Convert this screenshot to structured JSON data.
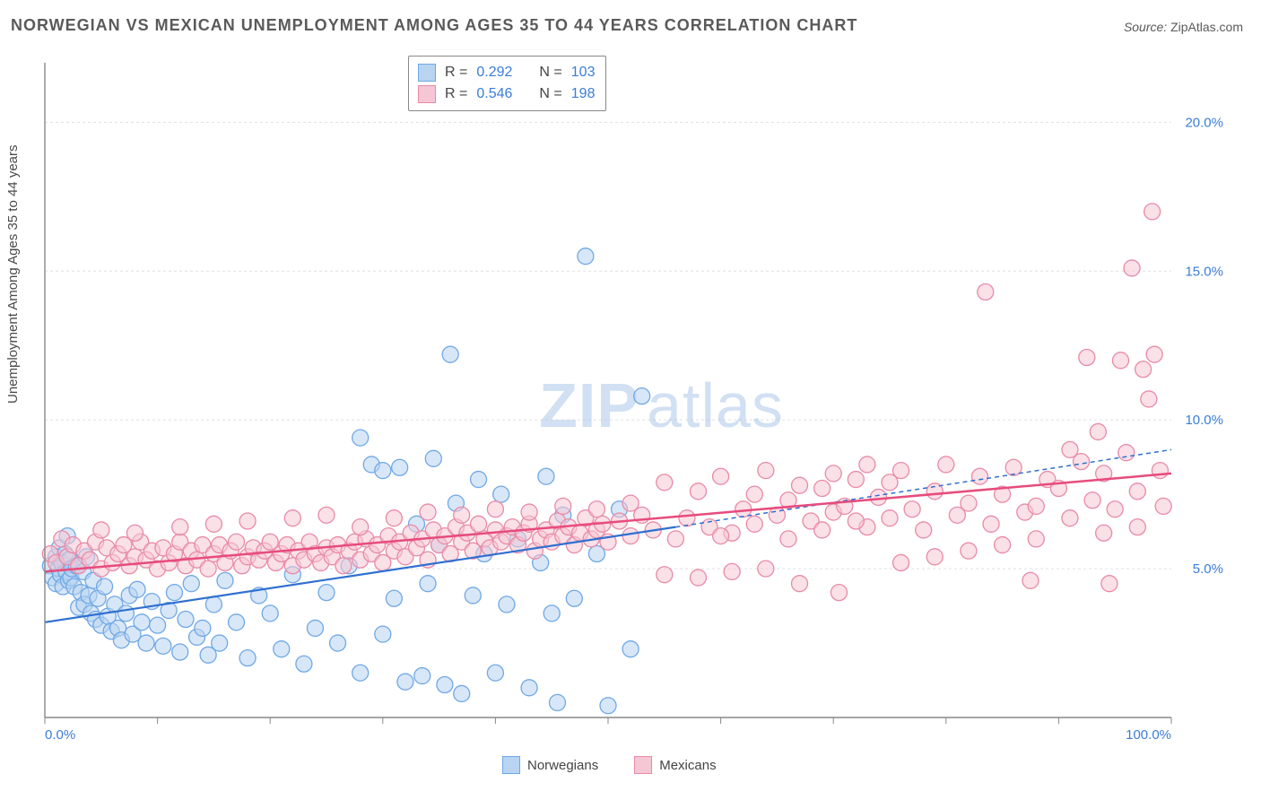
{
  "title": "NORWEGIAN VS MEXICAN UNEMPLOYMENT AMONG AGES 35 TO 44 YEARS CORRELATION CHART",
  "source_label": "Source:",
  "source_value": "ZipAtlas.com",
  "ylabel": "Unemployment Among Ages 35 to 44 years",
  "watermark_a": "ZIP",
  "watermark_b": "atlas",
  "chart": {
    "type": "scatter",
    "xlim": [
      0,
      100
    ],
    "ylim": [
      0,
      22
    ],
    "x_ticks": [
      0,
      10,
      20,
      30,
      40,
      50,
      60,
      70,
      80,
      90,
      100
    ],
    "x_tick_labels": {
      "0": "0.0%",
      "100": "100.0%"
    },
    "y_ticks": [
      5,
      10,
      15,
      20
    ],
    "y_tick_labels": {
      "5": "5.0%",
      "10": "10.0%",
      "15": "15.0%",
      "20": "20.0%"
    },
    "grid_color": "#e0e0e0",
    "axis_color": "#888888",
    "background": "#ffffff",
    "marker_radius": 9,
    "marker_stroke_width": 1.3,
    "series": [
      {
        "name": "Norwegians",
        "fill": "#b8d4f0",
        "stroke": "#6fa8e6",
        "fill_opacity": 0.55,
        "R": "0.292",
        "N": "103",
        "trend": {
          "x1": 0,
          "y1": 3.2,
          "x2": 56,
          "y2": 6.4,
          "x2b": 100,
          "y2b": 9.0,
          "stroke": "#2f6fd0",
          "width": 2.2,
          "dash_after": 56
        },
        "points": [
          [
            0.5,
            5.1
          ],
          [
            0.7,
            4.7
          ],
          [
            1.0,
            5.4
          ],
          [
            1.0,
            4.5
          ],
          [
            1.2,
            5.0
          ],
          [
            1.3,
            5.7
          ],
          [
            1.4,
            4.8
          ],
          [
            1.5,
            5.2
          ],
          [
            1.6,
            4.4
          ],
          [
            1.8,
            5.5
          ],
          [
            1.9,
            4.9
          ],
          [
            2.0,
            6.1
          ],
          [
            2.1,
            4.6
          ],
          [
            2.2,
            5.3
          ],
          [
            2.3,
            4.7
          ],
          [
            2.4,
            5.0
          ],
          [
            2.6,
            4.4
          ],
          [
            2.8,
            5.1
          ],
          [
            3.0,
            3.7
          ],
          [
            3.2,
            4.2
          ],
          [
            3.4,
            4.9
          ],
          [
            3.5,
            3.8
          ],
          [
            3.7,
            5.4
          ],
          [
            3.9,
            4.1
          ],
          [
            4.1,
            3.5
          ],
          [
            4.3,
            4.6
          ],
          [
            4.5,
            3.3
          ],
          [
            4.7,
            4.0
          ],
          [
            5.0,
            3.1
          ],
          [
            5.3,
            4.4
          ],
          [
            5.6,
            3.4
          ],
          [
            5.9,
            2.9
          ],
          [
            6.2,
            3.8
          ],
          [
            6.5,
            3.0
          ],
          [
            6.8,
            2.6
          ],
          [
            7.2,
            3.5
          ],
          [
            7.5,
            4.1
          ],
          [
            7.8,
            2.8
          ],
          [
            8.2,
            4.3
          ],
          [
            8.6,
            3.2
          ],
          [
            9.0,
            2.5
          ],
          [
            9.5,
            3.9
          ],
          [
            10.0,
            3.1
          ],
          [
            10.5,
            2.4
          ],
          [
            11.0,
            3.6
          ],
          [
            11.5,
            4.2
          ],
          [
            12.0,
            2.2
          ],
          [
            12.5,
            3.3
          ],
          [
            13.0,
            4.5
          ],
          [
            13.5,
            2.7
          ],
          [
            14.0,
            3.0
          ],
          [
            14.5,
            2.1
          ],
          [
            15.0,
            3.8
          ],
          [
            15.5,
            2.5
          ],
          [
            16.0,
            4.6
          ],
          [
            17.0,
            3.2
          ],
          [
            18.0,
            2.0
          ],
          [
            19.0,
            4.1
          ],
          [
            20.0,
            3.5
          ],
          [
            21.0,
            2.3
          ],
          [
            22.0,
            4.8
          ],
          [
            23.0,
            1.8
          ],
          [
            24.0,
            3.0
          ],
          [
            25.0,
            4.2
          ],
          [
            26.0,
            2.5
          ],
          [
            27.0,
            5.1
          ],
          [
            28.0,
            1.5
          ],
          [
            28.0,
            9.4
          ],
          [
            29.0,
            8.5
          ],
          [
            30.0,
            2.8
          ],
          [
            30.0,
            8.3
          ],
          [
            31.0,
            4.0
          ],
          [
            31.5,
            8.4
          ],
          [
            32.0,
            1.2
          ],
          [
            33.0,
            6.5
          ],
          [
            33.5,
            1.4
          ],
          [
            34.0,
            4.5
          ],
          [
            34.5,
            8.7
          ],
          [
            35.0,
            5.8
          ],
          [
            35.5,
            1.1
          ],
          [
            36.0,
            12.2
          ],
          [
            36.5,
            7.2
          ],
          [
            37.0,
            0.8
          ],
          [
            38.0,
            4.1
          ],
          [
            38.5,
            8.0
          ],
          [
            39.0,
            5.5
          ],
          [
            40.0,
            1.5
          ],
          [
            40.5,
            7.5
          ],
          [
            41.0,
            3.8
          ],
          [
            42.0,
            6.0
          ],
          [
            43.0,
            1.0
          ],
          [
            44.0,
            5.2
          ],
          [
            44.5,
            8.1
          ],
          [
            45.0,
            3.5
          ],
          [
            45.5,
            0.5
          ],
          [
            46.0,
            6.8
          ],
          [
            47.0,
            4.0
          ],
          [
            48.0,
            15.5
          ],
          [
            49.0,
            5.5
          ],
          [
            50.0,
            0.4
          ],
          [
            51.0,
            7.0
          ],
          [
            52.0,
            2.3
          ],
          [
            53.0,
            10.8
          ]
        ]
      },
      {
        "name": "Mexicans",
        "fill": "#f5c6d4",
        "stroke": "#e88aa8",
        "fill_opacity": 0.55,
        "R": "0.546",
        "N": "198",
        "trend": {
          "x1": 0,
          "y1": 4.9,
          "x2": 100,
          "y2": 8.2,
          "stroke": "#e74b7c",
          "width": 2.5
        },
        "points": [
          [
            0.5,
            5.5
          ],
          [
            1.0,
            5.2
          ],
          [
            1.5,
            6.0
          ],
          [
            2.0,
            5.4
          ],
          [
            2.5,
            5.8
          ],
          [
            3.0,
            5.1
          ],
          [
            3.5,
            5.6
          ],
          [
            4.0,
            5.3
          ],
          [
            4.5,
            5.9
          ],
          [
            5.0,
            5.0
          ],
          [
            5.5,
            5.7
          ],
          [
            6.0,
            5.2
          ],
          [
            6.5,
            5.5
          ],
          [
            7.0,
            5.8
          ],
          [
            7.5,
            5.1
          ],
          [
            8.0,
            5.4
          ],
          [
            8.5,
            5.9
          ],
          [
            9.0,
            5.3
          ],
          [
            9.5,
            5.6
          ],
          [
            10.0,
            5.0
          ],
          [
            10.5,
            5.7
          ],
          [
            11.0,
            5.2
          ],
          [
            11.5,
            5.5
          ],
          [
            12.0,
            5.9
          ],
          [
            12.5,
            5.1
          ],
          [
            13.0,
            5.6
          ],
          [
            13.5,
            5.3
          ],
          [
            14.0,
            5.8
          ],
          [
            14.5,
            5.0
          ],
          [
            15.0,
            5.5
          ],
          [
            15.5,
            5.8
          ],
          [
            16.0,
            5.2
          ],
          [
            16.5,
            5.6
          ],
          [
            17.0,
            5.9
          ],
          [
            17.5,
            5.1
          ],
          [
            18.0,
            5.4
          ],
          [
            18.5,
            5.7
          ],
          [
            19.0,
            5.3
          ],
          [
            19.5,
            5.6
          ],
          [
            20.0,
            5.9
          ],
          [
            20.5,
            5.2
          ],
          [
            21.0,
            5.5
          ],
          [
            21.5,
            5.8
          ],
          [
            22.0,
            5.1
          ],
          [
            22.5,
            5.6
          ],
          [
            23.0,
            5.3
          ],
          [
            23.5,
            5.9
          ],
          [
            24.0,
            5.5
          ],
          [
            24.5,
            5.2
          ],
          [
            25.0,
            5.7
          ],
          [
            25.5,
            5.4
          ],
          [
            26.0,
            5.8
          ],
          [
            26.5,
            5.1
          ],
          [
            27.0,
            5.6
          ],
          [
            27.5,
            5.9
          ],
          [
            28.0,
            5.3
          ],
          [
            28.5,
            6.0
          ],
          [
            29.0,
            5.5
          ],
          [
            29.5,
            5.8
          ],
          [
            30.0,
            5.2
          ],
          [
            30.5,
            6.1
          ],
          [
            31.0,
            5.6
          ],
          [
            31.5,
            5.9
          ],
          [
            32.0,
            5.4
          ],
          [
            32.5,
            6.2
          ],
          [
            33.0,
            5.7
          ],
          [
            33.5,
            6.0
          ],
          [
            34.0,
            5.3
          ],
          [
            34.5,
            6.3
          ],
          [
            35.0,
            5.8
          ],
          [
            35.5,
            6.1
          ],
          [
            36.0,
            5.5
          ],
          [
            36.5,
            6.4
          ],
          [
            37.0,
            5.9
          ],
          [
            37.5,
            6.2
          ],
          [
            38.0,
            5.6
          ],
          [
            38.5,
            6.5
          ],
          [
            39.0,
            6.0
          ],
          [
            39.5,
            5.7
          ],
          [
            40.0,
            6.3
          ],
          [
            40.5,
            5.9
          ],
          [
            41.0,
            6.1
          ],
          [
            41.5,
            6.4
          ],
          [
            42.0,
            5.8
          ],
          [
            42.5,
            6.2
          ],
          [
            43.0,
            6.5
          ],
          [
            43.5,
            5.6
          ],
          [
            44.0,
            6.0
          ],
          [
            44.5,
            6.3
          ],
          [
            45.0,
            5.9
          ],
          [
            45.5,
            6.6
          ],
          [
            46.0,
            6.1
          ],
          [
            46.5,
            6.4
          ],
          [
            47.0,
            5.8
          ],
          [
            47.5,
            6.2
          ],
          [
            48.0,
            6.7
          ],
          [
            48.5,
            6.0
          ],
          [
            49.0,
            6.3
          ],
          [
            49.5,
            6.5
          ],
          [
            50.0,
            5.9
          ],
          [
            51.0,
            6.6
          ],
          [
            52.0,
            6.1
          ],
          [
            53.0,
            6.8
          ],
          [
            54.0,
            6.3
          ],
          [
            55.0,
            7.9
          ],
          [
            56.0,
            6.0
          ],
          [
            57.0,
            6.7
          ],
          [
            58.0,
            7.6
          ],
          [
            59.0,
            6.4
          ],
          [
            60.0,
            8.1
          ],
          [
            61.0,
            6.2
          ],
          [
            62.0,
            7.0
          ],
          [
            63.0,
            6.5
          ],
          [
            64.0,
            8.3
          ],
          [
            65.0,
            6.8
          ],
          [
            66.0,
            7.3
          ],
          [
            67.0,
            4.5
          ],
          [
            68.0,
            6.6
          ],
          [
            69.0,
            7.7
          ],
          [
            70.0,
            6.9
          ],
          [
            70.5,
            4.2
          ],
          [
            71.0,
            7.1
          ],
          [
            72.0,
            8.0
          ],
          [
            73.0,
            6.4
          ],
          [
            74.0,
            7.4
          ],
          [
            75.0,
            6.7
          ],
          [
            76.0,
            8.3
          ],
          [
            77.0,
            7.0
          ],
          [
            78.0,
            6.3
          ],
          [
            79.0,
            7.6
          ],
          [
            80.0,
            8.5
          ],
          [
            81.0,
            6.8
          ],
          [
            82.0,
            7.2
          ],
          [
            83.0,
            8.1
          ],
          [
            83.5,
            14.3
          ],
          [
            84.0,
            6.5
          ],
          [
            85.0,
            7.5
          ],
          [
            86.0,
            8.4
          ],
          [
            87.0,
            6.9
          ],
          [
            87.5,
            4.6
          ],
          [
            88.0,
            7.1
          ],
          [
            89.0,
            8.0
          ],
          [
            90.0,
            7.7
          ],
          [
            91.0,
            6.7
          ],
          [
            92.0,
            8.6
          ],
          [
            92.5,
            12.1
          ],
          [
            93.0,
            7.3
          ],
          [
            93.5,
            9.6
          ],
          [
            94.0,
            8.2
          ],
          [
            94.5,
            4.5
          ],
          [
            95.0,
            7.0
          ],
          [
            95.5,
            12.0
          ],
          [
            96.0,
            8.9
          ],
          [
            96.5,
            15.1
          ],
          [
            97.0,
            7.6
          ],
          [
            97.5,
            11.7
          ],
          [
            98.0,
            10.7
          ],
          [
            98.3,
            17.0
          ],
          [
            98.5,
            12.2
          ],
          [
            99.0,
            8.3
          ],
          [
            99.3,
            7.1
          ],
          [
            5.0,
            6.3
          ],
          [
            8.0,
            6.2
          ],
          [
            12.0,
            6.4
          ],
          [
            15.0,
            6.5
          ],
          [
            18.0,
            6.6
          ],
          [
            22.0,
            6.7
          ],
          [
            25.0,
            6.8
          ],
          [
            28.0,
            6.4
          ],
          [
            31.0,
            6.7
          ],
          [
            34.0,
            6.9
          ],
          [
            37.0,
            6.8
          ],
          [
            40.0,
            7.0
          ],
          [
            43.0,
            6.9
          ],
          [
            46.0,
            7.1
          ],
          [
            49.0,
            7.0
          ],
          [
            52.0,
            7.2
          ],
          [
            55.0,
            4.8
          ],
          [
            58.0,
            4.7
          ],
          [
            61.0,
            4.9
          ],
          [
            64.0,
            5.0
          ],
          [
            67.0,
            7.8
          ],
          [
            70.0,
            8.2
          ],
          [
            73.0,
            8.5
          ],
          [
            76.0,
            5.2
          ],
          [
            79.0,
            5.4
          ],
          [
            82.0,
            5.6
          ],
          [
            85.0,
            5.8
          ],
          [
            88.0,
            6.0
          ],
          [
            91.0,
            9.0
          ],
          [
            94.0,
            6.2
          ],
          [
            97.0,
            6.4
          ],
          [
            60.0,
            6.1
          ],
          [
            63.0,
            7.5
          ],
          [
            66.0,
            6.0
          ],
          [
            69.0,
            6.3
          ],
          [
            72.0,
            6.6
          ],
          [
            75.0,
            7.9
          ]
        ]
      }
    ]
  },
  "legend_top": {
    "R_label": "R",
    "N_label": "N",
    "eq": "="
  },
  "legend_bottom": {
    "s1": "Norwegians",
    "s2": "Mexicans"
  }
}
